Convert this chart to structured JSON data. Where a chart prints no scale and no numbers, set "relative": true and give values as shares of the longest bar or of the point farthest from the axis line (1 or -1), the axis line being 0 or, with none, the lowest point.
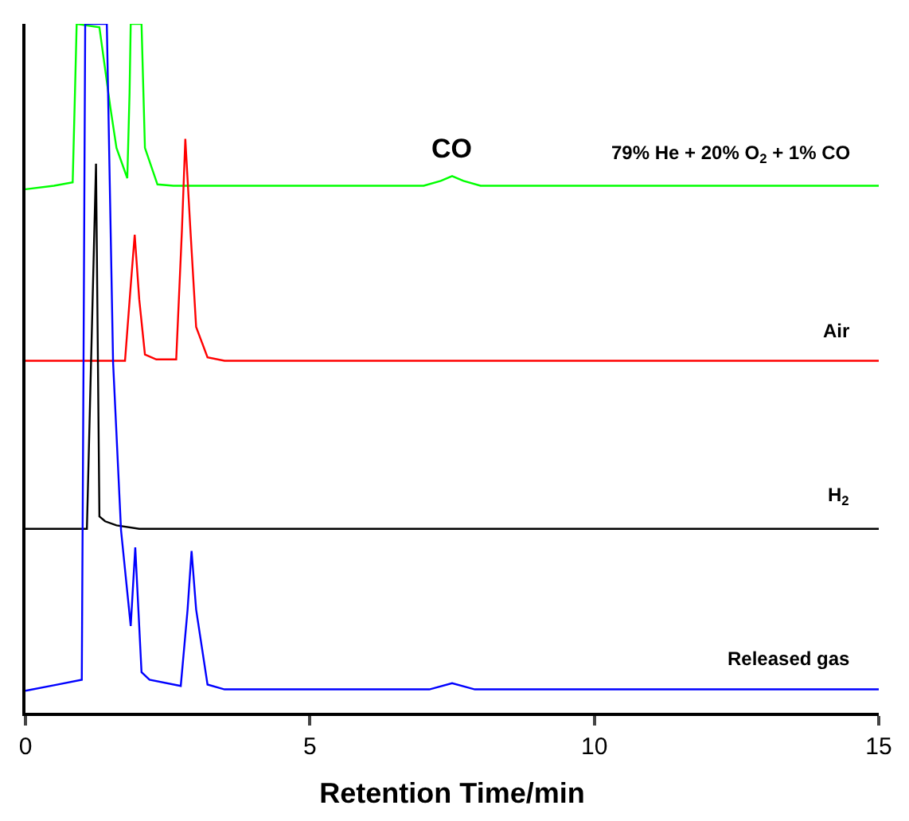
{
  "chart_data": {
    "type": "line",
    "relative": true,
    "xlabel": "Retention Time/min",
    "xlim": [
      0,
      15
    ],
    "xticks": [
      0,
      5,
      10,
      15
    ],
    "marker": "none",
    "line_style": "solid",
    "annotations": [
      {
        "text": "CO",
        "x": 7.5,
        "y": 0.779
      }
    ],
    "series": [
      {
        "name": "79% He + 20% O$_{2}$ + 1% CO",
        "color": "#00ff00",
        "x": [
          0,
          0.5,
          0.83,
          0.87,
          0.9,
          1.3,
          1.49,
          1.6,
          1.79,
          1.83,
          1.85,
          2.04,
          2.1,
          2.32,
          2.6,
          3.0,
          7.0,
          7.3,
          7.5,
          7.7,
          8.0,
          15
        ],
        "values": [
          0.76,
          0.765,
          0.77,
          0.9,
          1.0,
          0.995,
          0.88,
          0.82,
          0.776,
          0.9,
          1.0,
          1.0,
          0.82,
          0.767,
          0.765,
          0.765,
          0.765,
          0.772,
          0.779,
          0.772,
          0.765,
          0.765
        ]
      },
      {
        "name": "Air",
        "color": "#ff0000",
        "x": [
          0,
          1.75,
          1.85,
          1.92,
          2.0,
          2.1,
          2.3,
          2.65,
          2.75,
          2.81,
          2.9,
          3.0,
          3.2,
          3.5,
          15
        ],
        "values": [
          0.511,
          0.511,
          0.62,
          0.694,
          0.6,
          0.52,
          0.513,
          0.513,
          0.7,
          0.833,
          0.7,
          0.56,
          0.516,
          0.511,
          0.511
        ]
      },
      {
        "name": "H$_{2}$",
        "color": "#000000",
        "x": [
          0,
          1.08,
          1.24,
          1.3,
          1.4,
          1.6,
          2.0,
          15
        ],
        "values": [
          0.267,
          0.267,
          0.797,
          0.285,
          0.278,
          0.272,
          0.267,
          0.267
        ]
      },
      {
        "name": "Released gas",
        "color": "#0000ff",
        "x": [
          0,
          0.5,
          0.99,
          1.02,
          1.05,
          1.4,
          1.43,
          1.54,
          1.68,
          1.85,
          1.93,
          2.04,
          2.18,
          2.73,
          2.85,
          2.92,
          3.0,
          3.2,
          3.5,
          7.1,
          7.5,
          7.9,
          15
        ],
        "values": [
          0.032,
          0.04,
          0.048,
          0.5,
          1.0,
          1.0,
          1.0,
          0.509,
          0.265,
          0.126,
          0.24,
          0.059,
          0.048,
          0.039,
          0.15,
          0.235,
          0.15,
          0.041,
          0.034,
          0.034,
          0.043,
          0.034,
          0.034
        ]
      }
    ]
  }
}
